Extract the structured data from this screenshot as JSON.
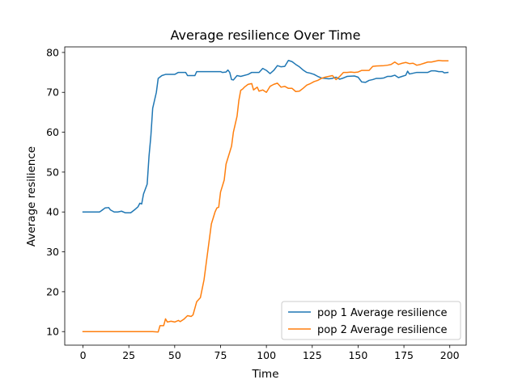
{
  "chart_data": {
    "type": "line",
    "title": "Average resilience Over Time",
    "xlabel": "Time",
    "ylabel": "Average resilience",
    "xlim": [
      -9.95,
      208.95
    ],
    "ylim": [
      6.6,
      81.4
    ],
    "xticks": [
      0,
      25,
      50,
      75,
      100,
      125,
      150,
      175,
      200
    ],
    "yticks": [
      10,
      20,
      30,
      40,
      50,
      60,
      70,
      80
    ],
    "grid": false,
    "legend_position": "lower-right",
    "series": [
      {
        "name": "pop 1 Average resilience",
        "color": "#1f77b4",
        "points": [
          [
            0,
            40
          ],
          [
            5,
            40
          ],
          [
            9,
            40
          ],
          [
            10,
            40.3
          ],
          [
            12,
            41
          ],
          [
            14,
            41.1
          ],
          [
            15,
            40.5
          ],
          [
            17,
            40
          ],
          [
            19,
            40
          ],
          [
            21,
            40.2
          ],
          [
            23,
            39.8
          ],
          [
            26,
            39.8
          ],
          [
            28,
            40.5
          ],
          [
            30,
            41.3
          ],
          [
            31,
            42.2
          ],
          [
            32,
            42
          ],
          [
            33,
            44.5
          ],
          [
            35,
            47
          ],
          [
            36,
            54
          ],
          [
            37,
            59
          ],
          [
            38,
            66
          ],
          [
            40,
            70
          ],
          [
            41,
            73.5
          ],
          [
            43,
            74.2
          ],
          [
            45,
            74.5
          ],
          [
            50,
            74.5
          ],
          [
            52,
            75
          ],
          [
            56,
            75
          ],
          [
            57,
            74.2
          ],
          [
            61,
            74.2
          ],
          [
            62,
            75.2
          ],
          [
            66,
            75.2
          ],
          [
            70,
            75.2
          ],
          [
            75,
            75.2
          ],
          [
            76,
            75
          ],
          [
            78,
            75.1
          ],
          [
            79,
            75.6
          ],
          [
            80,
            75
          ],
          [
            81,
            73.2
          ],
          [
            82,
            73.1
          ],
          [
            84,
            74.2
          ],
          [
            86,
            74
          ],
          [
            90,
            74.5
          ],
          [
            92,
            75
          ],
          [
            96,
            75
          ],
          [
            98,
            76
          ],
          [
            100,
            75.5
          ],
          [
            102,
            74.7
          ],
          [
            104,
            75.5
          ],
          [
            106,
            76.7
          ],
          [
            108,
            76.4
          ],
          [
            110,
            76.5
          ],
          [
            112,
            78
          ],
          [
            114,
            77.7
          ],
          [
            116,
            77
          ],
          [
            118,
            76.4
          ],
          [
            120,
            75.6
          ],
          [
            122,
            75
          ],
          [
            124,
            74.8
          ],
          [
            126,
            74.5
          ],
          [
            128,
            74
          ],
          [
            130,
            73.6
          ],
          [
            132,
            73.5
          ],
          [
            134,
            73.4
          ],
          [
            136,
            73.5
          ],
          [
            138,
            73.8
          ],
          [
            140,
            73.3
          ],
          [
            142,
            73.6
          ],
          [
            144,
            74
          ],
          [
            148,
            74.1
          ],
          [
            150,
            73.8
          ],
          [
            152,
            72.6
          ],
          [
            154,
            72.5
          ],
          [
            156,
            73
          ],
          [
            158,
            73.2
          ],
          [
            160,
            73.5
          ],
          [
            162,
            73.5
          ],
          [
            164,
            73.6
          ],
          [
            166,
            74
          ],
          [
            168,
            74
          ],
          [
            170,
            74.3
          ],
          [
            172,
            73.7
          ],
          [
            174,
            74
          ],
          [
            176,
            74.3
          ],
          [
            177,
            75.3
          ],
          [
            178,
            74.6
          ],
          [
            180,
            74.8
          ],
          [
            182,
            75
          ],
          [
            184,
            75
          ],
          [
            186,
            75
          ],
          [
            188,
            75
          ],
          [
            190,
            75.4
          ],
          [
            192,
            75.4
          ],
          [
            194,
            75.2
          ],
          [
            196,
            75.2
          ],
          [
            197,
            74.9
          ],
          [
            199,
            75
          ]
        ]
      },
      {
        "name": "pop 2 Average resilience",
        "color": "#ff7f0e",
        "points": [
          [
            0,
            10
          ],
          [
            10,
            10
          ],
          [
            20,
            10
          ],
          [
            30,
            10
          ],
          [
            38,
            10
          ],
          [
            41,
            9.9
          ],
          [
            42,
            11.5
          ],
          [
            44,
            11.5
          ],
          [
            45,
            13.2
          ],
          [
            46,
            12.4
          ],
          [
            48,
            12.6
          ],
          [
            50,
            12.4
          ],
          [
            52,
            12.8
          ],
          [
            53,
            12.5
          ],
          [
            55,
            13.1
          ],
          [
            57,
            14
          ],
          [
            59,
            13.8
          ],
          [
            60,
            14.2
          ],
          [
            62,
            17.5
          ],
          [
            63,
            18
          ],
          [
            64,
            18.5
          ],
          [
            66,
            23
          ],
          [
            68,
            30
          ],
          [
            70,
            37
          ],
          [
            72,
            40
          ],
          [
            73,
            41
          ],
          [
            74,
            41.2
          ],
          [
            75,
            45
          ],
          [
            77,
            48
          ],
          [
            78,
            52
          ],
          [
            80,
            55
          ],
          [
            81,
            56.5
          ],
          [
            82,
            60
          ],
          [
            83,
            62
          ],
          [
            84,
            64
          ],
          [
            85,
            68
          ],
          [
            86,
            70.5
          ],
          [
            87,
            70.8
          ],
          [
            88,
            71.3
          ],
          [
            90,
            72
          ],
          [
            92,
            72.2
          ],
          [
            93,
            70.6
          ],
          [
            95,
            71.3
          ],
          [
            96,
            70.3
          ],
          [
            98,
            70.6
          ],
          [
            100,
            70
          ],
          [
            102,
            71.5
          ],
          [
            104,
            72
          ],
          [
            106,
            72.3
          ],
          [
            108,
            71.3
          ],
          [
            110,
            71.5
          ],
          [
            112,
            71
          ],
          [
            114,
            71
          ],
          [
            116,
            70.2
          ],
          [
            118,
            70.3
          ],
          [
            120,
            71
          ],
          [
            122,
            71.8
          ],
          [
            124,
            72.2
          ],
          [
            126,
            72.7
          ],
          [
            128,
            73
          ],
          [
            130,
            73.5
          ],
          [
            132,
            73.8
          ],
          [
            134,
            74
          ],
          [
            136,
            74.2
          ],
          [
            138,
            73.2
          ],
          [
            140,
            74
          ],
          [
            142,
            75
          ],
          [
            144,
            75
          ],
          [
            146,
            75.1
          ],
          [
            148,
            75
          ],
          [
            150,
            75.1
          ],
          [
            152,
            75.5
          ],
          [
            156,
            75.5
          ],
          [
            158,
            76.5
          ],
          [
            160,
            76.6
          ],
          [
            164,
            76.7
          ],
          [
            166,
            76.8
          ],
          [
            168,
            77
          ],
          [
            170,
            77.6
          ],
          [
            172,
            77
          ],
          [
            174,
            77.3
          ],
          [
            176,
            77.5
          ],
          [
            178,
            77.2
          ],
          [
            180,
            77.3
          ],
          [
            182,
            76.8
          ],
          [
            184,
            77
          ],
          [
            186,
            77.3
          ],
          [
            188,
            77.6
          ],
          [
            190,
            77.6
          ],
          [
            192,
            77.8
          ],
          [
            194,
            78
          ],
          [
            196,
            77.9
          ],
          [
            199,
            77.9
          ]
        ]
      }
    ]
  }
}
